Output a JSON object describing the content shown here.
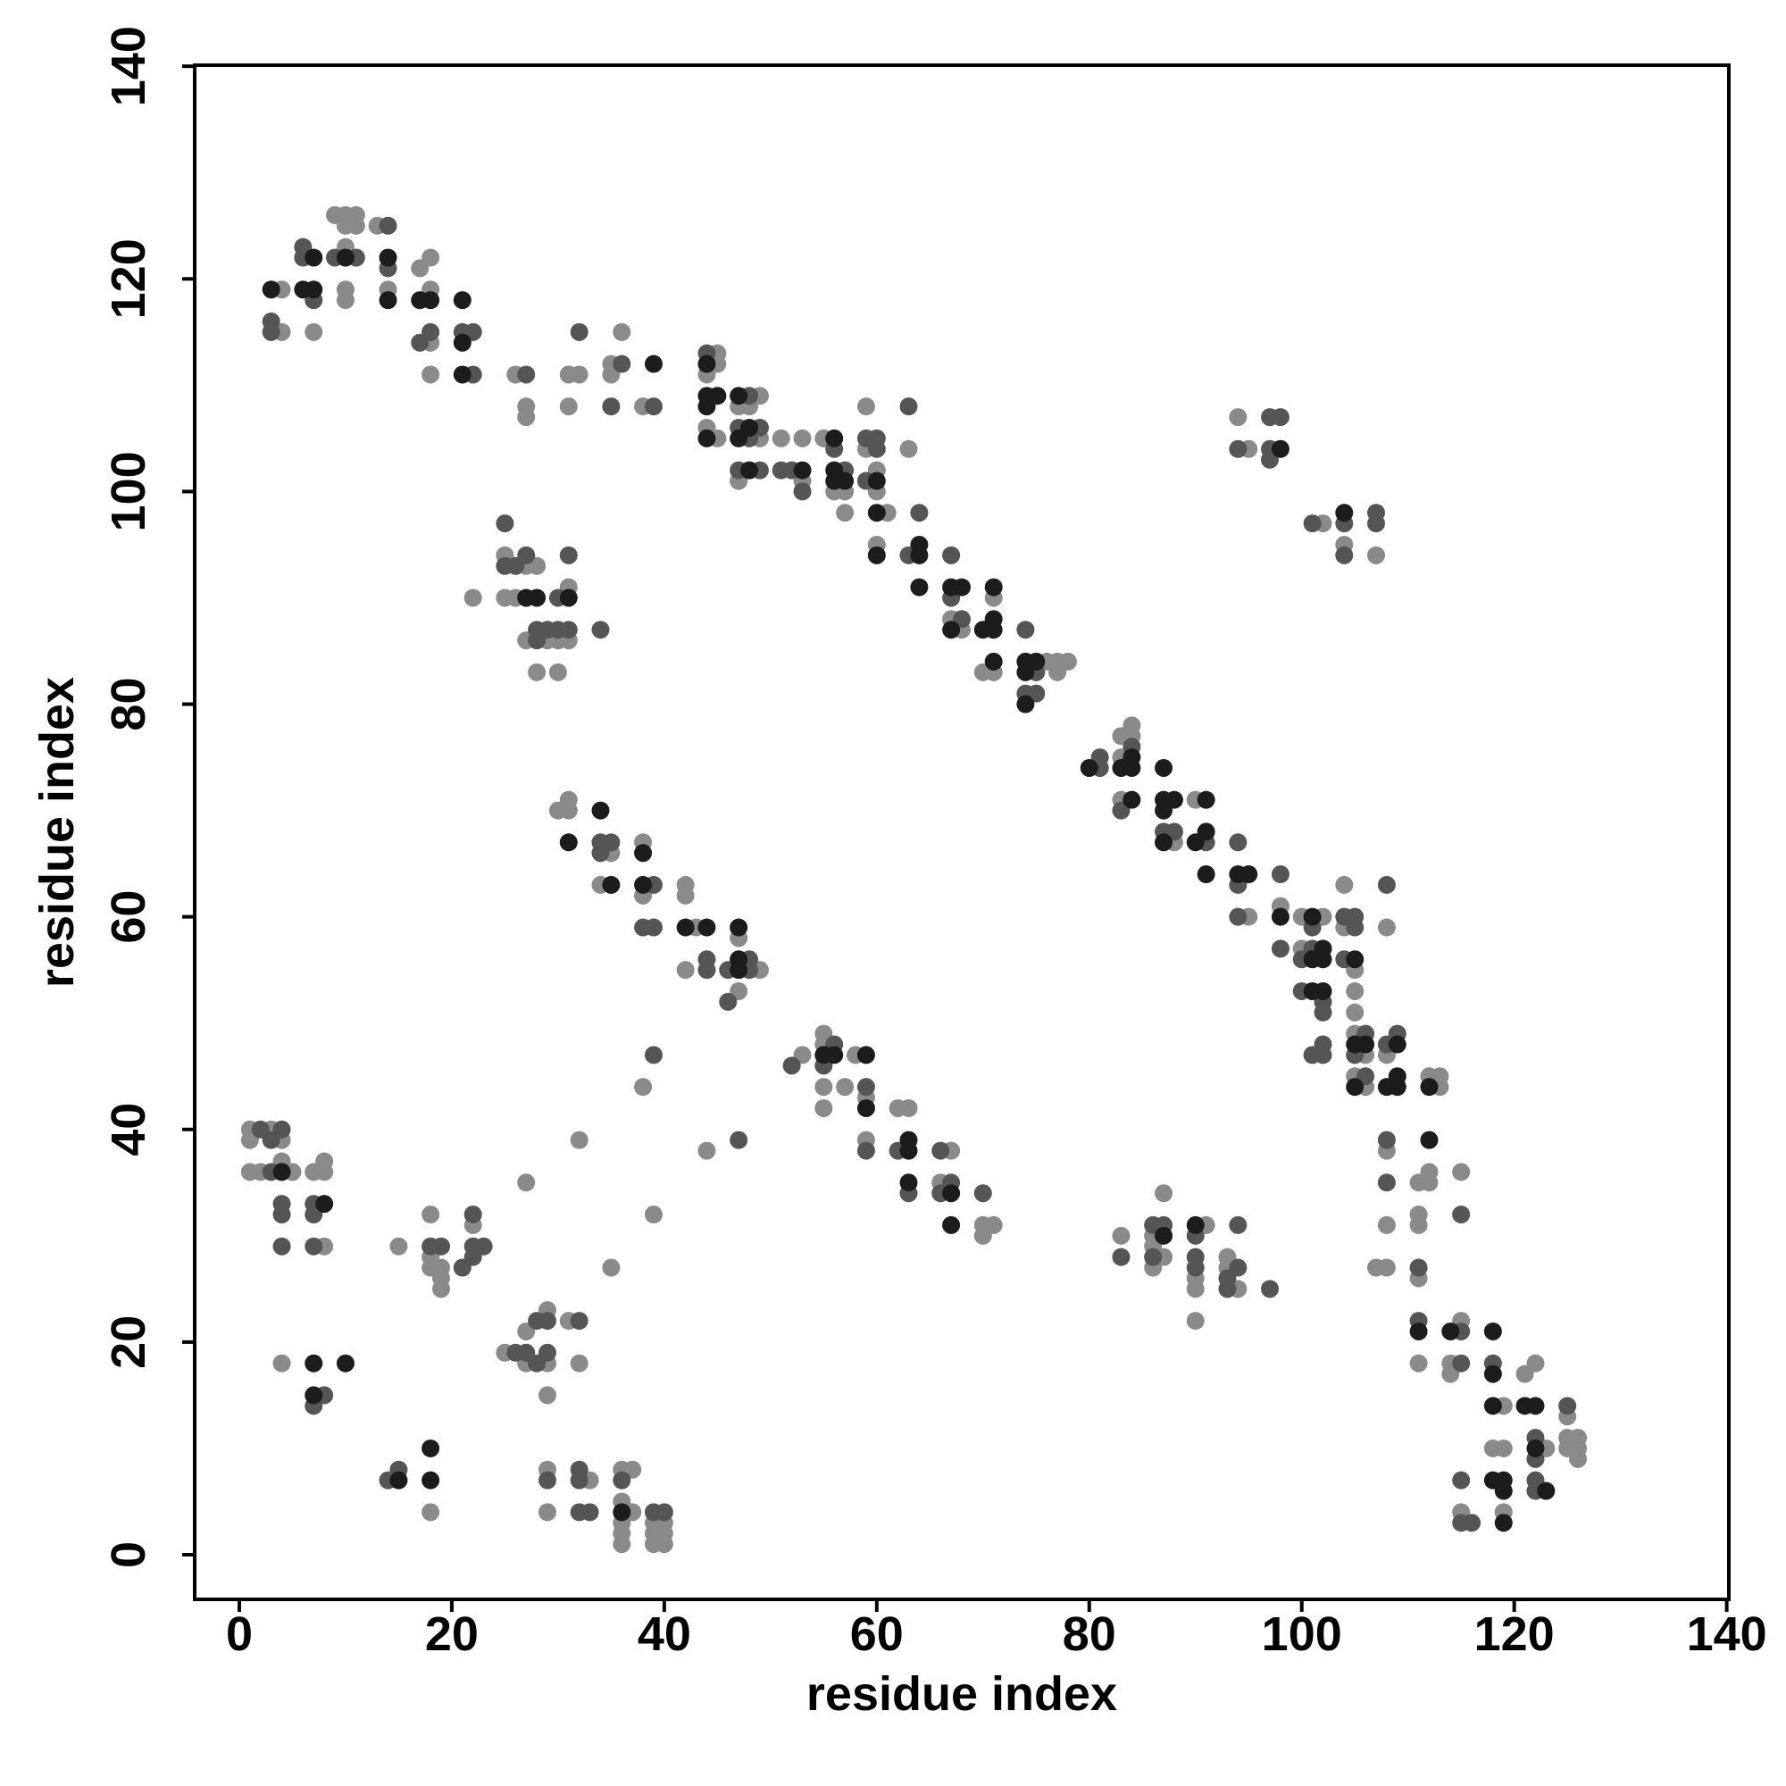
{
  "chart_data": {
    "type": "scatter",
    "xlabel": "residue index",
    "ylabel": "residue index",
    "xlim": [
      -4.2,
      140.2
    ],
    "ylim": [
      -4.2,
      140.1
    ],
    "xticks": [
      0,
      20,
      40,
      60,
      80,
      100,
      120,
      140
    ],
    "yticks": [
      0,
      20,
      40,
      60,
      80,
      100,
      120,
      140
    ],
    "grid": false,
    "series": [
      {
        "color": "#8a8a8a",
        "x": [
          4,
          4,
          7,
          9,
          10,
          10,
          10,
          10,
          10,
          11,
          11,
          13,
          14,
          17,
          18,
          18,
          18,
          18,
          26,
          27,
          27,
          31,
          31,
          32,
          35,
          35,
          36,
          38,
          44,
          44,
          45,
          45,
          45,
          47,
          47,
          48,
          49,
          49,
          51,
          53,
          53,
          55,
          56,
          57,
          57,
          59,
          59,
          60,
          60,
          61,
          63,
          60,
          67,
          68,
          70,
          71,
          71,
          76,
          77,
          77,
          78,
          25,
          25,
          26,
          27,
          27,
          28,
          28,
          29,
          30,
          30,
          31,
          31,
          22,
          83,
          83,
          83,
          84,
          84,
          88,
          90,
          95,
          98,
          100,
          100,
          102,
          104,
          104,
          105,
          105,
          105,
          105,
          105,
          106,
          106,
          108,
          108,
          108,
          112,
          113,
          113,
          112,
          112,
          111,
          111,
          111,
          108,
          107,
          108,
          111,
          111,
          114,
          114,
          115,
          115,
          118,
          119,
          119,
          119,
          121,
          122,
          123,
          125,
          125,
          125,
          126,
          126,
          126,
          115,
          30,
          31,
          31,
          34,
          35,
          38,
          38,
          42,
          42,
          42,
          43,
          47,
          47,
          49,
          53,
          55,
          55,
          55,
          55,
          57,
          58,
          59,
          59,
          62,
          63,
          66,
          67,
          70,
          70,
          71,
          38,
          44,
          39,
          32,
          27,
          35,
          83,
          86,
          86,
          86,
          87,
          87,
          90,
          90,
          90,
          91,
          93,
          93,
          94,
          94,
          95,
          102,
          104,
          107,
          1,
          1,
          1,
          2,
          3,
          4,
          4,
          5,
          7,
          8,
          8,
          8,
          4,
          15,
          18,
          18,
          18,
          19,
          19,
          19,
          22,
          25,
          27,
          27,
          29,
          29,
          29,
          31,
          32,
          18,
          29,
          29,
          33,
          36,
          36,
          36,
          36,
          36,
          37,
          37,
          39,
          39,
          39,
          40,
          40,
          40
        ],
        "values": [
          119,
          115,
          115,
          126,
          126,
          125,
          123,
          119,
          118,
          126,
          125,
          125,
          119,
          121,
          122,
          119,
          114,
          111,
          111,
          108,
          107,
          111,
          108,
          111,
          112,
          111,
          115,
          108,
          111,
          106,
          113,
          112,
          105,
          108,
          101,
          108,
          109,
          105,
          105,
          105,
          101,
          105,
          100,
          100,
          98,
          108,
          104,
          102,
          100,
          98,
          104,
          95,
          88,
          87,
          83,
          90,
          83,
          84,
          84,
          83,
          84,
          94,
          90,
          90,
          93,
          86,
          93,
          83,
          86,
          86,
          83,
          91,
          86,
          90,
          77,
          75,
          71,
          78,
          77,
          67,
          71,
          60,
          61,
          60,
          57,
          60,
          63,
          59,
          55,
          53,
          51,
          49,
          45,
          47,
          44,
          59,
          47,
          38,
          45,
          45,
          44,
          36,
          35,
          35,
          32,
          31,
          31,
          27,
          27,
          26,
          18,
          18,
          17,
          22,
          36,
          10,
          14,
          10,
          4,
          17,
          18,
          10,
          13,
          11,
          10,
          11,
          10,
          9,
          4,
          70,
          71,
          70,
          63,
          66,
          67,
          62,
          63,
          62,
          55,
          59,
          58,
          53,
          55,
          47,
          49,
          48,
          44,
          42,
          44,
          47,
          43,
          39,
          42,
          42,
          35,
          38,
          31,
          30,
          31,
          44,
          38,
          32,
          39,
          35,
          27,
          30,
          30,
          29,
          27,
          34,
          28,
          26,
          25,
          22,
          31,
          28,
          27,
          25,
          107,
          104,
          97,
          95,
          94,
          40,
          39,
          36,
          36,
          40,
          39,
          37,
          36,
          36,
          37,
          36,
          29,
          18,
          29,
          32,
          28,
          27,
          27,
          26,
          25,
          31,
          19,
          21,
          18,
          23,
          18,
          15,
          22,
          18,
          4,
          8,
          4,
          7,
          8,
          5,
          3,
          2,
          1,
          8,
          4,
          3,
          2,
          1,
          3,
          2,
          1
        ]
      },
      {
        "color": "#555555",
        "x": [
          3,
          3,
          6,
          6,
          7,
          9,
          11,
          14,
          14,
          17,
          18,
          21,
          22,
          22,
          27,
          32,
          35,
          36,
          39,
          44,
          47,
          47,
          48,
          48,
          49,
          49,
          51,
          52,
          53,
          56,
          57,
          59,
          59,
          60,
          60,
          63,
          64,
          63,
          67,
          67,
          68,
          74,
          74,
          75,
          75,
          25,
          25,
          26,
          27,
          28,
          28,
          29,
          30,
          30,
          31,
          31,
          34,
          81,
          81,
          83,
          84,
          87,
          88,
          91,
          94,
          94,
          94,
          98,
          98,
          100,
          100,
          101,
          101,
          101,
          102,
          102,
          102,
          102,
          104,
          104,
          105,
          105,
          105,
          106,
          106,
          108,
          108,
          108,
          108,
          109,
          111,
          111,
          115,
          115,
          115,
          118,
          122,
          122,
          122,
          122,
          125,
          115,
          115,
          116,
          34,
          34,
          35,
          38,
          39,
          39,
          44,
          44,
          46,
          46,
          48,
          48,
          52,
          55,
          56,
          59,
          59,
          62,
          63,
          66,
          66,
          67,
          70,
          39,
          47,
          83,
          86,
          86,
          87,
          90,
          90,
          90,
          93,
          93,
          94,
          94,
          97,
          94,
          97,
          97,
          97,
          98,
          101,
          104,
          104,
          107,
          107,
          2,
          3,
          3,
          4,
          4,
          4,
          4,
          7,
          7,
          7,
          7,
          8,
          18,
          19,
          21,
          22,
          22,
          22,
          23,
          26,
          27,
          28,
          28,
          29,
          29,
          32,
          14,
          15,
          29,
          32,
          32,
          32,
          33,
          36,
          39,
          40
        ],
        "values": [
          116,
          115,
          123,
          122,
          118,
          122,
          122,
          125,
          121,
          114,
          115,
          115,
          115,
          111,
          111,
          115,
          108,
          112,
          108,
          113,
          106,
          102,
          109,
          105,
          106,
          102,
          102,
          102,
          100,
          104,
          102,
          105,
          101,
          105,
          104,
          108,
          98,
          94,
          94,
          90,
          88,
          87,
          81,
          83,
          81,
          97,
          93,
          93,
          94,
          87,
          86,
          87,
          90,
          87,
          94,
          87,
          87,
          75,
          74,
          70,
          76,
          68,
          68,
          67,
          67,
          63,
          60,
          64,
          57,
          56,
          53,
          59,
          57,
          47,
          52,
          51,
          48,
          47,
          60,
          56,
          60,
          59,
          47,
          49,
          45,
          63,
          48,
          39,
          35,
          49,
          27,
          22,
          21,
          18,
          32,
          18,
          11,
          9,
          7,
          6,
          14,
          7,
          3,
          3,
          67,
          66,
          67,
          59,
          63,
          59,
          56,
          55,
          55,
          52,
          56,
          55,
          46,
          46,
          48,
          44,
          38,
          38,
          34,
          38,
          34,
          35,
          34,
          47,
          39,
          28,
          31,
          28,
          31,
          30,
          28,
          27,
          26,
          25,
          31,
          27,
          25,
          104,
          107,
          104,
          103,
          107,
          97,
          97,
          94,
          98,
          97,
          40,
          39,
          36,
          40,
          33,
          32,
          29,
          33,
          32,
          29,
          14,
          15,
          29,
          29,
          27,
          32,
          29,
          28,
          29,
          19,
          19,
          22,
          18,
          22,
          19,
          22,
          7,
          8,
          7,
          8,
          7,
          4,
          4,
          7,
          4,
          4
        ]
      },
      {
        "color": "#1c1c1c",
        "x": [
          3,
          6,
          7,
          7,
          10,
          14,
          14,
          17,
          18,
          21,
          21,
          21,
          39,
          44,
          44,
          44,
          44,
          45,
          47,
          47,
          48,
          48,
          53,
          56,
          56,
          56,
          57,
          60,
          60,
          60,
          64,
          64,
          64,
          67,
          67,
          68,
          70,
          71,
          71,
          71,
          71,
          74,
          74,
          74,
          75,
          27,
          28,
          31,
          80,
          83,
          84,
          84,
          84,
          87,
          87,
          87,
          87,
          88,
          90,
          91,
          91,
          91,
          94,
          95,
          98,
          101,
          101,
          101,
          102,
          102,
          102,
          105,
          105,
          105,
          106,
          108,
          109,
          109,
          109,
          112,
          112,
          111,
          114,
          118,
          118,
          118,
          118,
          119,
          119,
          119,
          121,
          122,
          122,
          123,
          31,
          34,
          35,
          38,
          38,
          42,
          44,
          47,
          47,
          47,
          55,
          56,
          59,
          59,
          63,
          63,
          63,
          67,
          67,
          87,
          90,
          98,
          104,
          4,
          8,
          7,
          7,
          10,
          15,
          18,
          18,
          36
        ],
        "values": [
          119,
          119,
          122,
          119,
          122,
          122,
          118,
          118,
          118,
          118,
          114,
          111,
          112,
          112,
          109,
          108,
          105,
          109,
          109,
          105,
          106,
          102,
          102,
          105,
          102,
          101,
          101,
          101,
          98,
          94,
          95,
          94,
          91,
          91,
          87,
          91,
          87,
          91,
          88,
          87,
          84,
          84,
          83,
          80,
          84,
          90,
          90,
          90,
          74,
          74,
          75,
          74,
          71,
          74,
          71,
          70,
          67,
          71,
          67,
          71,
          68,
          64,
          64,
          64,
          60,
          60,
          56,
          53,
          57,
          56,
          53,
          56,
          48,
          44,
          48,
          44,
          48,
          45,
          44,
          44,
          39,
          21,
          21,
          21,
          17,
          14,
          7,
          7,
          6,
          3,
          14,
          14,
          10,
          6,
          67,
          70,
          63,
          66,
          63,
          59,
          59,
          59,
          56,
          55,
          47,
          47,
          47,
          42,
          39,
          38,
          35,
          34,
          31,
          30,
          31,
          104,
          98,
          36,
          33,
          18,
          15,
          18,
          7,
          10,
          7,
          4
        ]
      }
    ]
  }
}
